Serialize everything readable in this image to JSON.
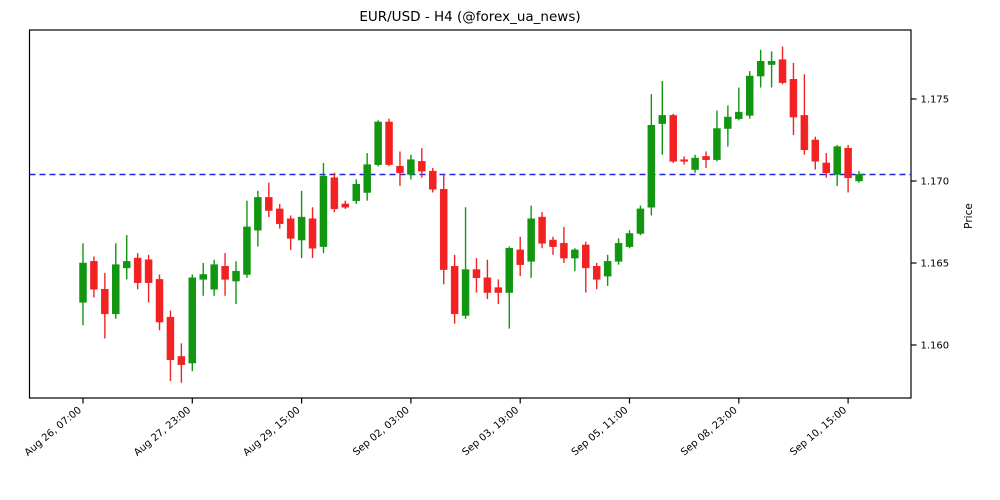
{
  "chart_data": {
    "type": "candlestick",
    "title": "EUR/USD - H4 (@forex_ua_news)",
    "symbol": "EUR/USD",
    "timeframe": "H4",
    "source_handle": "@forex_ua_news",
    "ylabel_right": "Price",
    "y_ticks": [
      "1.160",
      "1.165",
      "1.170",
      "1.175"
    ],
    "ylim": [
      1.1568,
      1.1792
    ],
    "x_ticks": [
      {
        "bar_index": 0,
        "label": "Aug 26, 07:00"
      },
      {
        "bar_index": 10,
        "label": "Aug 27, 23:00"
      },
      {
        "bar_index": 20,
        "label": "Aug 29, 15:00"
      },
      {
        "bar_index": 30,
        "label": "Sep 02, 03:00"
      },
      {
        "bar_index": 40,
        "label": "Sep 03, 19:00"
      },
      {
        "bar_index": 50,
        "label": "Sep 05, 11:00"
      },
      {
        "bar_index": 60,
        "label": "Sep 08, 23:00"
      },
      {
        "bar_index": 70,
        "label": "Sep 10, 15:00"
      }
    ],
    "hline": {
      "price": 1.1704,
      "color": "#2222dd",
      "style": "dashed"
    },
    "colors": {
      "up": "#129612",
      "down": "#f32222",
      "frame": "#000000"
    },
    "legend": "none",
    "grid": false,
    "candle_format": [
      "open",
      "high",
      "low",
      "close"
    ],
    "candles": [
      [
        1.1626,
        1.1662,
        1.1612,
        1.165
      ],
      [
        1.1651,
        1.1654,
        1.1629,
        1.1634
      ],
      [
        1.1634,
        1.1644,
        1.1604,
        1.1619
      ],
      [
        1.1619,
        1.1662,
        1.1616,
        1.1649
      ],
      [
        1.1647,
        1.1667,
        1.164,
        1.1651
      ],
      [
        1.1653,
        1.1656,
        1.1634,
        1.1638
      ],
      [
        1.1652,
        1.1655,
        1.1626,
        1.1638
      ],
      [
        1.164,
        1.1643,
        1.1609,
        1.1614
      ],
      [
        1.1617,
        1.1621,
        1.1578,
        1.1591
      ],
      [
        1.1593,
        1.1601,
        1.1577,
        1.1588
      ],
      [
        1.1589,
        1.1643,
        1.1584,
        1.1641
      ],
      [
        1.164,
        1.165,
        1.163,
        1.1643
      ],
      [
        1.1634,
        1.1652,
        1.163,
        1.1649
      ],
      [
        1.1648,
        1.1656,
        1.163,
        1.164
      ],
      [
        1.1639,
        1.1651,
        1.1625,
        1.1645
      ],
      [
        1.1643,
        1.1688,
        1.1641,
        1.1672
      ],
      [
        1.167,
        1.1694,
        1.166,
        1.169
      ],
      [
        1.169,
        1.1699,
        1.1678,
        1.1682
      ],
      [
        1.1683,
        1.1686,
        1.1671,
        1.1674
      ],
      [
        1.1677,
        1.1679,
        1.1658,
        1.1665
      ],
      [
        1.1664,
        1.1694,
        1.1653,
        1.1678
      ],
      [
        1.1677,
        1.1684,
        1.1653,
        1.1659
      ],
      [
        1.166,
        1.1711,
        1.1656,
        1.1703
      ],
      [
        1.1702,
        1.1705,
        1.1681,
        1.1683
      ],
      [
        1.1686,
        1.1688,
        1.1683,
        1.1684
      ],
      [
        1.1688,
        1.1701,
        1.1686,
        1.1698
      ],
      [
        1.1693,
        1.1717,
        1.1688,
        1.171
      ],
      [
        1.171,
        1.1737,
        1.1709,
        1.1736
      ],
      [
        1.1736,
        1.1738,
        1.1709,
        1.171
      ],
      [
        1.1709,
        1.1718,
        1.1697,
        1.1705
      ],
      [
        1.1704,
        1.1716,
        1.1701,
        1.1713
      ],
      [
        1.1712,
        1.172,
        1.1702,
        1.1706
      ],
      [
        1.1706,
        1.1708,
        1.1693,
        1.1695
      ],
      [
        1.1695,
        1.1704,
        1.1637,
        1.1646
      ],
      [
        1.1648,
        1.1655,
        1.1613,
        1.1619
      ],
      [
        1.1618,
        1.1684,
        1.1616,
        1.1646
      ],
      [
        1.1646,
        1.1653,
        1.1632,
        1.1641
      ],
      [
        1.1641,
        1.1652,
        1.1628,
        1.1632
      ],
      [
        1.1635,
        1.164,
        1.1625,
        1.1632
      ],
      [
        1.1632,
        1.166,
        1.161,
        1.1659
      ],
      [
        1.1658,
        1.1666,
        1.1642,
        1.1649
      ],
      [
        1.1651,
        1.1685,
        1.1641,
        1.1677
      ],
      [
        1.1678,
        1.1681,
        1.1659,
        1.1662
      ],
      [
        1.1664,
        1.1666,
        1.1655,
        1.166
      ],
      [
        1.1662,
        1.1672,
        1.165,
        1.1653
      ],
      [
        1.1653,
        1.1659,
        1.1645,
        1.1658
      ],
      [
        1.1661,
        1.1663,
        1.1632,
        1.1647
      ],
      [
        1.1648,
        1.165,
        1.1634,
        1.164
      ],
      [
        1.1642,
        1.1655,
        1.1636,
        1.1651
      ],
      [
        1.1651,
        1.1665,
        1.1649,
        1.1662
      ],
      [
        1.166,
        1.167,
        1.1659,
        1.1668
      ],
      [
        1.1668,
        1.1685,
        1.1667,
        1.1683
      ],
      [
        1.1684,
        1.1753,
        1.1679,
        1.1734
      ],
      [
        1.1735,
        1.1761,
        1.1716,
        1.174
      ],
      [
        1.174,
        1.1741,
        1.1711,
        1.1712
      ],
      [
        1.1713,
        1.1715,
        1.171,
        1.1712
      ],
      [
        1.1707,
        1.1716,
        1.1705,
        1.1714
      ],
      [
        1.1715,
        1.1718,
        1.1708,
        1.1713
      ],
      [
        1.1713,
        1.1743,
        1.1712,
        1.1732
      ],
      [
        1.1732,
        1.1746,
        1.1721,
        1.1739
      ],
      [
        1.1738,
        1.1757,
        1.1737,
        1.1742
      ],
      [
        1.174,
        1.1767,
        1.1738,
        1.1764
      ],
      [
        1.1764,
        1.178,
        1.1757,
        1.1773
      ],
      [
        1.1771,
        1.1779,
        1.1757,
        1.1773
      ],
      [
        1.1774,
        1.1782,
        1.1759,
        1.176
      ],
      [
        1.1762,
        1.1772,
        1.1728,
        1.1739
      ],
      [
        1.174,
        1.1765,
        1.1716,
        1.1719
      ],
      [
        1.1725,
        1.1727,
        1.1707,
        1.1712
      ],
      [
        1.1711,
        1.1717,
        1.1702,
        1.1705
      ],
      [
        1.1704,
        1.1722,
        1.1697,
        1.1721
      ],
      [
        1.172,
        1.1722,
        1.1693,
        1.1702
      ],
      [
        1.17,
        1.1706,
        1.1699,
        1.1704
      ]
    ]
  }
}
